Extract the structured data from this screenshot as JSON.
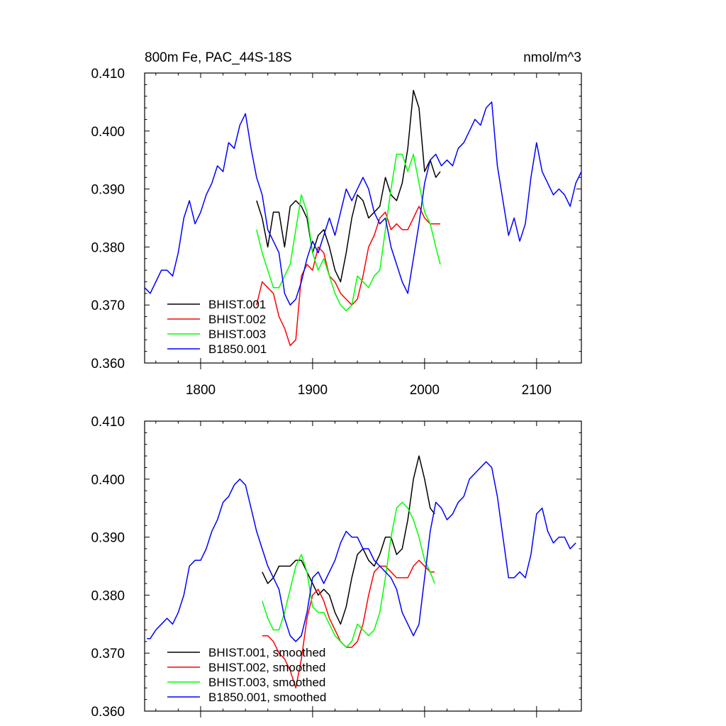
{
  "header": {
    "left_title": "800m Fe, PAC_44S-18S",
    "right_title": "nmol/m^3"
  },
  "chart_data": [
    {
      "type": "line",
      "panel": "top",
      "xlim": [
        1750,
        2140
      ],
      "ylim": [
        0.36,
        0.41
      ],
      "x_ticks": [
        1800,
        1900,
        2000,
        2100
      ],
      "x_tick_labels": [
        "1800",
        "1900",
        "2000",
        "2100"
      ],
      "y_ticks": [
        0.36,
        0.37,
        0.38,
        0.39,
        0.4,
        0.41
      ],
      "y_tick_labels": [
        "0.360",
        "0.370",
        "0.380",
        "0.390",
        "0.400",
        "0.410"
      ],
      "legend_position": "bottom-left",
      "series": [
        {
          "name": "BHIST.001",
          "color": "#000000",
          "x": [
            1850,
            1855,
            1860,
            1865,
            1870,
            1875,
            1880,
            1885,
            1890,
            1895,
            1900,
            1905,
            1910,
            1915,
            1920,
            1925,
            1930,
            1935,
            1940,
            1945,
            1950,
            1955,
            1960,
            1965,
            1970,
            1975,
            1980,
            1985,
            1990,
            1995,
            2000,
            2005,
            2010,
            2014
          ],
          "y": [
            0.388,
            0.385,
            0.38,
            0.386,
            0.386,
            0.38,
            0.387,
            0.388,
            0.387,
            0.385,
            0.379,
            0.382,
            0.383,
            0.38,
            0.376,
            0.374,
            0.379,
            0.385,
            0.389,
            0.388,
            0.385,
            0.386,
            0.387,
            0.392,
            0.389,
            0.388,
            0.391,
            0.397,
            0.407,
            0.404,
            0.393,
            0.395,
            0.392,
            0.393
          ]
        },
        {
          "name": "BHIST.002",
          "color": "#ff0000",
          "x": [
            1850,
            1855,
            1860,
            1865,
            1870,
            1875,
            1880,
            1885,
            1890,
            1895,
            1900,
            1905,
            1910,
            1915,
            1920,
            1925,
            1930,
            1935,
            1940,
            1945,
            1950,
            1955,
            1960,
            1965,
            1970,
            1975,
            1980,
            1985,
            1990,
            1995,
            2000,
            2005,
            2010,
            2014
          ],
          "y": [
            0.37,
            0.374,
            0.373,
            0.372,
            0.368,
            0.366,
            0.363,
            0.364,
            0.375,
            0.377,
            0.376,
            0.38,
            0.379,
            0.375,
            0.374,
            0.372,
            0.371,
            0.37,
            0.371,
            0.375,
            0.38,
            0.382,
            0.385,
            0.386,
            0.383,
            0.384,
            0.383,
            0.383,
            0.385,
            0.387,
            0.385,
            0.384,
            0.384,
            0.384
          ]
        },
        {
          "name": "BHIST.003",
          "color": "#00ff00",
          "x": [
            1850,
            1855,
            1860,
            1865,
            1870,
            1875,
            1880,
            1885,
            1890,
            1895,
            1900,
            1905,
            1910,
            1915,
            1920,
            1925,
            1930,
            1935,
            1940,
            1945,
            1950,
            1955,
            1960,
            1965,
            1970,
            1975,
            1980,
            1985,
            1990,
            1995,
            2000,
            2005,
            2010,
            2014
          ],
          "y": [
            0.383,
            0.379,
            0.376,
            0.373,
            0.373,
            0.375,
            0.377,
            0.383,
            0.389,
            0.386,
            0.379,
            0.376,
            0.378,
            0.375,
            0.372,
            0.37,
            0.369,
            0.37,
            0.375,
            0.374,
            0.373,
            0.375,
            0.376,
            0.383,
            0.39,
            0.396,
            0.396,
            0.393,
            0.396,
            0.391,
            0.386,
            0.384,
            0.38,
            0.377
          ]
        },
        {
          "name": "B1850.001",
          "color": "#0000ff",
          "x": [
            1750,
            1755,
            1760,
            1765,
            1770,
            1775,
            1780,
            1785,
            1790,
            1795,
            1800,
            1805,
            1810,
            1815,
            1820,
            1825,
            1830,
            1835,
            1840,
            1845,
            1850,
            1855,
            1860,
            1865,
            1870,
            1875,
            1880,
            1885,
            1890,
            1895,
            1900,
            1905,
            1910,
            1915,
            1920,
            1925,
            1930,
            1935,
            1940,
            1945,
            1950,
            1955,
            1960,
            1965,
            1970,
            1975,
            1980,
            1985,
            1990,
            1995,
            2000,
            2005,
            2010,
            2015,
            2020,
            2025,
            2030,
            2035,
            2040,
            2045,
            2050,
            2055,
            2060,
            2065,
            2070,
            2075,
            2080,
            2085,
            2090,
            2095,
            2100,
            2105,
            2110,
            2115,
            2120,
            2125,
            2130,
            2135,
            2140
          ],
          "y": [
            0.373,
            0.372,
            0.374,
            0.376,
            0.376,
            0.375,
            0.379,
            0.385,
            0.388,
            0.384,
            0.386,
            0.389,
            0.391,
            0.394,
            0.393,
            0.398,
            0.397,
            0.401,
            0.403,
            0.397,
            0.392,
            0.389,
            0.383,
            0.381,
            0.379,
            0.372,
            0.37,
            0.371,
            0.374,
            0.378,
            0.381,
            0.379,
            0.382,
            0.385,
            0.382,
            0.386,
            0.39,
            0.388,
            0.39,
            0.392,
            0.39,
            0.386,
            0.384,
            0.385,
            0.38,
            0.377,
            0.374,
            0.372,
            0.378,
            0.384,
            0.391,
            0.395,
            0.396,
            0.394,
            0.395,
            0.394,
            0.397,
            0.398,
            0.4,
            0.402,
            0.401,
            0.404,
            0.405,
            0.394,
            0.388,
            0.382,
            0.385,
            0.381,
            0.384,
            0.392,
            0.398,
            0.393,
            0.391,
            0.389,
            0.39,
            0.389,
            0.387,
            0.391,
            0.393
          ]
        }
      ]
    },
    {
      "type": "line",
      "panel": "bottom",
      "xlim": [
        1750,
        2140
      ],
      "ylim": [
        0.36,
        0.41
      ],
      "x_ticks": [
        1800,
        1900,
        2000,
        2100
      ],
      "y_ticks": [
        0.36,
        0.37,
        0.38,
        0.39,
        0.4,
        0.41
      ],
      "y_tick_labels": [
        "0.360",
        "0.370",
        "0.380",
        "0.390",
        "0.400",
        "0.410"
      ],
      "legend_position": "bottom-left",
      "series": [
        {
          "name": "BHIST.001, smoothed",
          "color": "#000000",
          "x": [
            1855,
            1860,
            1865,
            1870,
            1875,
            1880,
            1885,
            1890,
            1895,
            1900,
            1905,
            1910,
            1915,
            1920,
            1925,
            1930,
            1935,
            1940,
            1945,
            1950,
            1955,
            1960,
            1965,
            1970,
            1975,
            1980,
            1985,
            1990,
            1995,
            2000,
            2005,
            2009
          ],
          "y": [
            0.384,
            0.382,
            0.383,
            0.385,
            0.385,
            0.385,
            0.386,
            0.386,
            0.384,
            0.382,
            0.38,
            0.381,
            0.38,
            0.377,
            0.375,
            0.378,
            0.383,
            0.387,
            0.388,
            0.386,
            0.385,
            0.387,
            0.39,
            0.39,
            0.387,
            0.388,
            0.393,
            0.4,
            0.404,
            0.4,
            0.395,
            0.394
          ]
        },
        {
          "name": "BHIST.002, smoothed",
          "color": "#ff0000",
          "x": [
            1855,
            1860,
            1865,
            1870,
            1875,
            1880,
            1885,
            1890,
            1895,
            1900,
            1905,
            1910,
            1915,
            1920,
            1925,
            1930,
            1935,
            1940,
            1945,
            1950,
            1955,
            1960,
            1965,
            1970,
            1975,
            1980,
            1985,
            1990,
            1995,
            2000,
            2005,
            2009
          ],
          "y": [
            0.373,
            0.373,
            0.372,
            0.37,
            0.369,
            0.367,
            0.364,
            0.369,
            0.376,
            0.38,
            0.381,
            0.379,
            0.376,
            0.374,
            0.372,
            0.371,
            0.371,
            0.372,
            0.375,
            0.38,
            0.384,
            0.385,
            0.385,
            0.384,
            0.383,
            0.383,
            0.383,
            0.385,
            0.386,
            0.385,
            0.384,
            0.384
          ]
        },
        {
          "name": "BHIST.003, smoothed",
          "color": "#00ff00",
          "x": [
            1855,
            1860,
            1865,
            1870,
            1875,
            1880,
            1885,
            1890,
            1895,
            1900,
            1905,
            1910,
            1915,
            1920,
            1925,
            1930,
            1935,
            1940,
            1945,
            1950,
            1955,
            1960,
            1965,
            1970,
            1975,
            1980,
            1985,
            1990,
            1995,
            2000,
            2005,
            2009
          ],
          "y": [
            0.379,
            0.376,
            0.374,
            0.374,
            0.377,
            0.381,
            0.385,
            0.387,
            0.384,
            0.378,
            0.377,
            0.377,
            0.375,
            0.373,
            0.372,
            0.371,
            0.372,
            0.375,
            0.374,
            0.373,
            0.374,
            0.377,
            0.383,
            0.39,
            0.395,
            0.396,
            0.395,
            0.393,
            0.39,
            0.386,
            0.384,
            0.382
          ]
        },
        {
          "name": "B1850.001, smoothed",
          "color": "#0000ff",
          "x": [
            1752,
            1755,
            1760,
            1765,
            1770,
            1775,
            1780,
            1785,
            1790,
            1795,
            1800,
            1805,
            1810,
            1815,
            1820,
            1825,
            1830,
            1835,
            1840,
            1845,
            1850,
            1855,
            1860,
            1865,
            1870,
            1875,
            1880,
            1885,
            1890,
            1895,
            1900,
            1905,
            1910,
            1915,
            1920,
            1925,
            1930,
            1935,
            1940,
            1945,
            1950,
            1955,
            1960,
            1965,
            1970,
            1975,
            1980,
            1985,
            1990,
            1995,
            2000,
            2005,
            2010,
            2015,
            2020,
            2025,
            2030,
            2035,
            2040,
            2045,
            2050,
            2055,
            2060,
            2065,
            2070,
            2075,
            2080,
            2085,
            2090,
            2095,
            2100,
            2105,
            2110,
            2115,
            2120,
            2125,
            2130,
            2135
          ],
          "y": [
            0.3725,
            0.3725,
            0.374,
            0.375,
            0.376,
            0.375,
            0.377,
            0.38,
            0.385,
            0.386,
            0.386,
            0.388,
            0.391,
            0.393,
            0.396,
            0.397,
            0.399,
            0.4,
            0.399,
            0.395,
            0.391,
            0.388,
            0.385,
            0.383,
            0.381,
            0.376,
            0.373,
            0.372,
            0.373,
            0.377,
            0.383,
            0.384,
            0.382,
            0.384,
            0.386,
            0.389,
            0.391,
            0.39,
            0.39,
            0.388,
            0.388,
            0.386,
            0.385,
            0.384,
            0.383,
            0.381,
            0.377,
            0.375,
            0.373,
            0.375,
            0.383,
            0.391,
            0.396,
            0.395,
            0.393,
            0.394,
            0.396,
            0.397,
            0.4,
            0.401,
            0.402,
            0.403,
            0.402,
            0.397,
            0.39,
            0.383,
            0.383,
            0.384,
            0.383,
            0.387,
            0.394,
            0.395,
            0.391,
            0.389,
            0.39,
            0.39,
            0.388,
            0.389
          ]
        }
      ]
    }
  ]
}
